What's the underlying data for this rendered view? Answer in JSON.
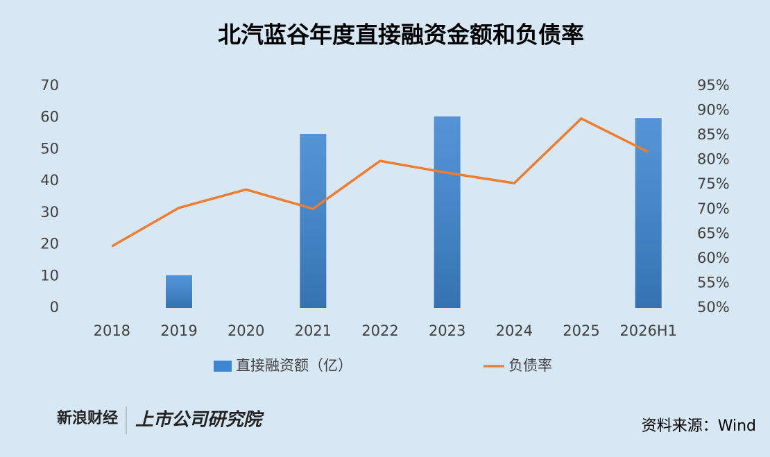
{
  "chart_data": {
    "type": "bar-line",
    "title": "北汽蓝谷年度直接融资金额和负债率",
    "categories": [
      "2018",
      "2019",
      "2020",
      "2021",
      "2022",
      "2023",
      "2024",
      "2025",
      "2026H1"
    ],
    "series": [
      {
        "name": "直接融资额（亿）",
        "type": "bar",
        "color": "#3d86d0",
        "values": [
          null,
          10.3,
          null,
          54.9,
          null,
          60.4,
          null,
          null,
          59.9
        ]
      },
      {
        "name": "负债率",
        "type": "line",
        "axis": "y2",
        "color": "#ed7d31",
        "values": [
          62.5,
          70.3,
          74.0,
          70.1,
          79.8,
          77.4,
          75.3,
          88.4,
          81.6
        ]
      }
    ],
    "ylim": [
      0,
      70
    ],
    "yticks": [
      0,
      10,
      20,
      30,
      40,
      50,
      60,
      70
    ],
    "y2lim": [
      50,
      95
    ],
    "y2ticks": [
      {
        "value": 50,
        "label": "50%"
      },
      {
        "value": 55,
        "label": "55%"
      },
      {
        "value": 60,
        "label": "60%"
      },
      {
        "value": 65,
        "label": "65%"
      },
      {
        "value": 70,
        "label": "70%"
      },
      {
        "value": 75,
        "label": "75%"
      },
      {
        "value": 80,
        "label": "80%"
      },
      {
        "value": 85,
        "label": "85%"
      },
      {
        "value": 90,
        "label": "90%"
      },
      {
        "value": 95,
        "label": "95%"
      }
    ],
    "grid": false,
    "legend": "bottom"
  },
  "footer": {
    "brand": "新浪财经",
    "institute": "上市公司研究院",
    "source": "资料来源：Wind"
  }
}
